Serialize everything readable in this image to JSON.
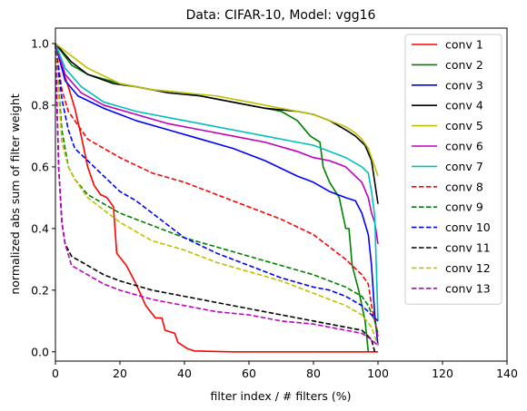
{
  "chart_data": {
    "type": "line",
    "title": "Data: CIFAR-10, Model: vgg16",
    "xlabel": "filter index / # filters (%)",
    "ylabel": "normalized abs sum of filter weight",
    "xlim": [
      0,
      140
    ],
    "ylim": [
      -0.03,
      1.05
    ],
    "xticks": [
      0,
      20,
      40,
      60,
      80,
      100,
      120,
      140
    ],
    "xtick_labels": [
      "0",
      "20",
      "40",
      "60",
      "80",
      "100",
      "120",
      "140"
    ],
    "yticks": [
      0.0,
      0.2,
      0.4,
      0.6,
      0.8,
      1.0
    ],
    "ytick_labels": [
      "0.0",
      "0.2",
      "0.4",
      "0.6",
      "0.8",
      "1.0"
    ],
    "grid": false,
    "legend_position": "top-right",
    "series": [
      {
        "name": "conv 1",
        "color": "#ff0000",
        "dash": "solid",
        "points": [
          [
            0,
            1.0
          ],
          [
            2,
            0.92
          ],
          [
            4,
            0.86
          ],
          [
            6,
            0.79
          ],
          [
            8,
            0.7
          ],
          [
            10,
            0.6
          ],
          [
            12,
            0.54
          ],
          [
            14,
            0.51
          ],
          [
            16,
            0.5
          ],
          [
            18,
            0.47
          ],
          [
            19,
            0.32
          ],
          [
            22,
            0.28
          ],
          [
            25,
            0.22
          ],
          [
            28,
            0.15
          ],
          [
            31,
            0.11
          ],
          [
            33,
            0.11
          ],
          [
            34,
            0.07
          ],
          [
            37,
            0.06
          ],
          [
            38,
            0.03
          ],
          [
            41,
            0.01
          ],
          [
            43,
            0.003
          ],
          [
            55,
            0.0
          ],
          [
            100,
            0.0
          ]
        ]
      },
      {
        "name": "conv 2",
        "color": "#008000",
        "dash": "solid",
        "points": [
          [
            0,
            1.0
          ],
          [
            5,
            0.93
          ],
          [
            10,
            0.9
          ],
          [
            20,
            0.87
          ],
          [
            30,
            0.85
          ],
          [
            40,
            0.84
          ],
          [
            50,
            0.82
          ],
          [
            60,
            0.8
          ],
          [
            70,
            0.78
          ],
          [
            75,
            0.75
          ],
          [
            79,
            0.7
          ],
          [
            82,
            0.68
          ],
          [
            83,
            0.6
          ],
          [
            85,
            0.55
          ],
          [
            88,
            0.5
          ],
          [
            90,
            0.4
          ],
          [
            91,
            0.4
          ],
          [
            92,
            0.28
          ],
          [
            94,
            0.2
          ],
          [
            96,
            0.1
          ],
          [
            97,
            0.0
          ]
        ]
      },
      {
        "name": "conv 3",
        "color": "#0000ff",
        "dash": "solid",
        "points": [
          [
            0,
            1.0
          ],
          [
            3,
            0.88
          ],
          [
            7,
            0.83
          ],
          [
            15,
            0.79
          ],
          [
            25,
            0.75
          ],
          [
            35,
            0.72
          ],
          [
            45,
            0.69
          ],
          [
            55,
            0.66
          ],
          [
            65,
            0.62
          ],
          [
            75,
            0.57
          ],
          [
            80,
            0.55
          ],
          [
            85,
            0.52
          ],
          [
            90,
            0.5
          ],
          [
            93,
            0.49
          ],
          [
            95,
            0.45
          ],
          [
            97,
            0.38
          ],
          [
            98,
            0.28
          ],
          [
            99,
            0.12
          ],
          [
            100,
            0.02
          ]
        ]
      },
      {
        "name": "conv 4",
        "color": "#000000",
        "dash": "solid",
        "points": [
          [
            0,
            1.0
          ],
          [
            5,
            0.94
          ],
          [
            10,
            0.9
          ],
          [
            18,
            0.87
          ],
          [
            25,
            0.86
          ],
          [
            35,
            0.84
          ],
          [
            45,
            0.83
          ],
          [
            55,
            0.81
          ],
          [
            65,
            0.79
          ],
          [
            75,
            0.78
          ],
          [
            80,
            0.77
          ],
          [
            85,
            0.75
          ],
          [
            90,
            0.72
          ],
          [
            93,
            0.7
          ],
          [
            96,
            0.67
          ],
          [
            98,
            0.62
          ],
          [
            99,
            0.55
          ],
          [
            100,
            0.48
          ]
        ]
      },
      {
        "name": "conv 5",
        "color": "#bfbf00",
        "dash": "solid",
        "points": [
          [
            0,
            1.0
          ],
          [
            5,
            0.96
          ],
          [
            10,
            0.92
          ],
          [
            20,
            0.87
          ],
          [
            30,
            0.85
          ],
          [
            40,
            0.84
          ],
          [
            50,
            0.83
          ],
          [
            60,
            0.81
          ],
          [
            70,
            0.79
          ],
          [
            80,
            0.77
          ],
          [
            85,
            0.75
          ],
          [
            90,
            0.73
          ],
          [
            93,
            0.71
          ],
          [
            95,
            0.69
          ],
          [
            97,
            0.66
          ],
          [
            98,
            0.63
          ],
          [
            99,
            0.6
          ],
          [
            100,
            0.57
          ]
        ]
      },
      {
        "name": "conv 6",
        "color": "#bf00bf",
        "dash": "solid",
        "points": [
          [
            0,
            1.0
          ],
          [
            3,
            0.9
          ],
          [
            8,
            0.84
          ],
          [
            15,
            0.8
          ],
          [
            25,
            0.77
          ],
          [
            35,
            0.74
          ],
          [
            45,
            0.72
          ],
          [
            55,
            0.7
          ],
          [
            65,
            0.68
          ],
          [
            75,
            0.65
          ],
          [
            80,
            0.63
          ],
          [
            85,
            0.62
          ],
          [
            90,
            0.6
          ],
          [
            95,
            0.55
          ],
          [
            97,
            0.5
          ],
          [
            98,
            0.45
          ],
          [
            99,
            0.42
          ],
          [
            100,
            0.35
          ]
        ]
      },
      {
        "name": "conv 7",
        "color": "#00bfbf",
        "dash": "solid",
        "points": [
          [
            0,
            1.0
          ],
          [
            3,
            0.92
          ],
          [
            8,
            0.86
          ],
          [
            15,
            0.81
          ],
          [
            25,
            0.78
          ],
          [
            35,
            0.76
          ],
          [
            45,
            0.74
          ],
          [
            55,
            0.72
          ],
          [
            65,
            0.7
          ],
          [
            75,
            0.68
          ],
          [
            80,
            0.67
          ],
          [
            85,
            0.65
          ],
          [
            90,
            0.63
          ],
          [
            95,
            0.6
          ],
          [
            97,
            0.58
          ],
          [
            98,
            0.52
          ],
          [
            99,
            0.44
          ],
          [
            100,
            0.1
          ]
        ]
      },
      {
        "name": "conv 8",
        "color": "#ff0000",
        "dash": "dashed",
        "points": [
          [
            0,
            1.0
          ],
          [
            2,
            0.85
          ],
          [
            4,
            0.78
          ],
          [
            6,
            0.75
          ],
          [
            10,
            0.69
          ],
          [
            15,
            0.66
          ],
          [
            20,
            0.63
          ],
          [
            30,
            0.58
          ],
          [
            40,
            0.55
          ],
          [
            50,
            0.51
          ],
          [
            60,
            0.47
          ],
          [
            70,
            0.43
          ],
          [
            80,
            0.38
          ],
          [
            85,
            0.34
          ],
          [
            90,
            0.3
          ],
          [
            95,
            0.25
          ],
          [
            97,
            0.22
          ],
          [
            98,
            0.15
          ],
          [
            100,
            0.05
          ]
        ]
      },
      {
        "name": "conv 9",
        "color": "#008000",
        "dash": "dashed",
        "points": [
          [
            0,
            1.0
          ],
          [
            2,
            0.72
          ],
          [
            4,
            0.6
          ],
          [
            6,
            0.56
          ],
          [
            10,
            0.51
          ],
          [
            15,
            0.48
          ],
          [
            20,
            0.45
          ],
          [
            30,
            0.41
          ],
          [
            40,
            0.37
          ],
          [
            50,
            0.34
          ],
          [
            60,
            0.31
          ],
          [
            70,
            0.28
          ],
          [
            80,
            0.25
          ],
          [
            85,
            0.23
          ],
          [
            90,
            0.21
          ],
          [
            95,
            0.18
          ],
          [
            97,
            0.15
          ],
          [
            99,
            0.1
          ],
          [
            100,
            0.06
          ]
        ]
      },
      {
        "name": "conv 10",
        "color": "#0000ff",
        "dash": "dashed",
        "points": [
          [
            0,
            1.0
          ],
          [
            2,
            0.82
          ],
          [
            4,
            0.72
          ],
          [
            6,
            0.66
          ],
          [
            10,
            0.62
          ],
          [
            15,
            0.57
          ],
          [
            20,
            0.52
          ],
          [
            25,
            0.49
          ],
          [
            30,
            0.45
          ],
          [
            40,
            0.37
          ],
          [
            50,
            0.32
          ],
          [
            60,
            0.28
          ],
          [
            70,
            0.24
          ],
          [
            80,
            0.21
          ],
          [
            85,
            0.2
          ],
          [
            90,
            0.18
          ],
          [
            95,
            0.15
          ],
          [
            98,
            0.12
          ],
          [
            100,
            0.1
          ]
        ]
      },
      {
        "name": "conv 11",
        "color": "#000000",
        "dash": "dashed",
        "points": [
          [
            0,
            1.0
          ],
          [
            1,
            0.6
          ],
          [
            2,
            0.42
          ],
          [
            3,
            0.35
          ],
          [
            5,
            0.31
          ],
          [
            10,
            0.28
          ],
          [
            15,
            0.25
          ],
          [
            20,
            0.23
          ],
          [
            30,
            0.2
          ],
          [
            40,
            0.18
          ],
          [
            50,
            0.16
          ],
          [
            60,
            0.14
          ],
          [
            70,
            0.12
          ],
          [
            80,
            0.1
          ],
          [
            85,
            0.09
          ],
          [
            90,
            0.08
          ],
          [
            95,
            0.07
          ],
          [
            98,
            0.04
          ],
          [
            99,
            0.0
          ]
        ]
      },
      {
        "name": "conv 12",
        "color": "#bfbf00",
        "dash": "dashed",
        "points": [
          [
            0,
            1.0
          ],
          [
            2,
            0.68
          ],
          [
            4,
            0.6
          ],
          [
            6,
            0.56
          ],
          [
            10,
            0.5
          ],
          [
            15,
            0.46
          ],
          [
            20,
            0.42
          ],
          [
            25,
            0.39
          ],
          [
            30,
            0.36
          ],
          [
            40,
            0.33
          ],
          [
            50,
            0.29
          ],
          [
            60,
            0.26
          ],
          [
            70,
            0.23
          ],
          [
            80,
            0.19
          ],
          [
            85,
            0.17
          ],
          [
            90,
            0.15
          ],
          [
            95,
            0.12
          ],
          [
            98,
            0.08
          ],
          [
            100,
            0.02
          ]
        ]
      },
      {
        "name": "conv 13",
        "color": "#bf00bf",
        "dash": "dashed",
        "points": [
          [
            0,
            1.0
          ],
          [
            1,
            0.6
          ],
          [
            2,
            0.42
          ],
          [
            3,
            0.35
          ],
          [
            5,
            0.28
          ],
          [
            10,
            0.25
          ],
          [
            15,
            0.22
          ],
          [
            20,
            0.2
          ],
          [
            30,
            0.17
          ],
          [
            40,
            0.15
          ],
          [
            50,
            0.13
          ],
          [
            60,
            0.12
          ],
          [
            70,
            0.1
          ],
          [
            80,
            0.09
          ],
          [
            85,
            0.08
          ],
          [
            90,
            0.07
          ],
          [
            95,
            0.06
          ],
          [
            98,
            0.04
          ],
          [
            100,
            0.02
          ]
        ]
      }
    ]
  }
}
